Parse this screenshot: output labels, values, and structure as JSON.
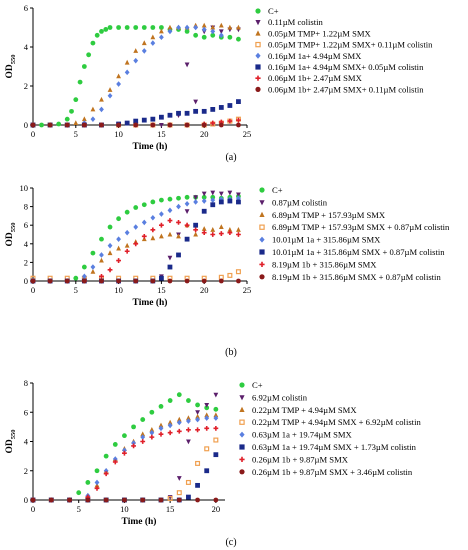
{
  "chart_data": [
    {
      "type": "scatter",
      "panel_label": "(a)",
      "xlabel": "Time (h)",
      "ylabel": "OD",
      "ylabel_sub": "550",
      "xlim": [
        0,
        25
      ],
      "ylim": [
        0,
        6
      ],
      "xticks": [
        "0",
        "5",
        "10",
        "15",
        "20",
        "25"
      ],
      "yticks": [
        "0",
        "2",
        "4",
        "6"
      ],
      "series": [
        {
          "name": "C+",
          "marker": "circle",
          "color": "#2ecc40",
          "x": [
            0,
            1,
            2,
            3,
            4,
            4.5,
            5,
            5.5,
            6,
            6.5,
            7,
            7.5,
            8,
            8.5,
            9,
            10,
            11,
            12,
            13,
            14,
            15,
            16,
            17,
            18,
            19,
            20,
            21,
            22,
            23,
            24
          ],
          "y": [
            0,
            0,
            0,
            0.05,
            0.3,
            0.7,
            1.3,
            2.2,
            3.0,
            3.6,
            4.2,
            4.6,
            4.8,
            4.9,
            5.0,
            5.0,
            5.0,
            5.0,
            5.0,
            5.0,
            5.0,
            4.9,
            4.9,
            4.8,
            4.6,
            4.5,
            4.6,
            4.5,
            4.5,
            4.4
          ]
        },
        {
          "name": "0.11µM colistin",
          "marker": "tri-down",
          "color": "#5b1f6b",
          "x": [
            0,
            2,
            4,
            6,
            8,
            10,
            12,
            14,
            15,
            16,
            17,
            18,
            19,
            20,
            21,
            22,
            23,
            24
          ],
          "y": [
            0,
            0,
            0,
            0,
            0,
            0,
            0,
            0,
            0,
            0,
            0.5,
            3.1,
            1.2,
            4.8,
            5.0,
            4.8,
            4.9,
            4.9
          ]
        },
        {
          "name": "0.05µM TMP+ 1.22µM SMX",
          "marker": "tri-up",
          "color": "#c0741f",
          "x": [
            0,
            2,
            4,
            5,
            6,
            7,
            8,
            9,
            10,
            11,
            12,
            13,
            14,
            15,
            16,
            17,
            18,
            19,
            20,
            21,
            22,
            23,
            24
          ],
          "y": [
            0,
            0,
            0,
            0.1,
            0.3,
            0.8,
            1.3,
            1.8,
            2.5,
            3.2,
            3.8,
            4.2,
            4.5,
            4.8,
            5.0,
            5.0,
            5.0,
            5.1,
            5.1,
            5.0,
            5.1,
            5.0,
            5.0
          ]
        },
        {
          "name": "0.05µM TMP+ 1.22µM SMX+ 0.11µM colistin",
          "marker": "square-open",
          "color": "#f0a050",
          "x": [
            0,
            2,
            4,
            6,
            8,
            10,
            12,
            14,
            16,
            18,
            20,
            21,
            22,
            23,
            24
          ],
          "y": [
            0,
            0,
            0,
            0,
            0,
            0,
            0,
            0,
            0,
            0,
            0,
            0.05,
            0.1,
            0.2,
            0.3
          ]
        },
        {
          "name": "0.16µM 1a+ 4.94µM SMX",
          "marker": "diamond",
          "color": "#5a7fe0",
          "x": [
            0,
            2,
            4,
            6,
            7,
            8,
            9,
            10,
            11,
            12,
            13,
            14,
            15,
            16,
            17,
            18,
            19,
            20,
            21,
            22
          ],
          "y": [
            0,
            0,
            0,
            0.1,
            0.3,
            0.8,
            1.5,
            2.1,
            2.7,
            3.3,
            3.8,
            4.2,
            4.5,
            4.8,
            5.0,
            5.0,
            5.0,
            4.9,
            4.8,
            4.6
          ]
        },
        {
          "name": "0.16µM 1a+ 4.94µM SMX+ 0.05µM colistin",
          "marker": "square",
          "color": "#1a2a8a",
          "x": [
            0,
            2,
            4,
            6,
            8,
            10,
            11,
            12,
            13,
            14,
            15,
            16,
            17,
            18,
            19,
            20,
            21,
            22,
            23,
            24
          ],
          "y": [
            0,
            0,
            0,
            0,
            0,
            0.05,
            0.1,
            0.2,
            0.25,
            0.3,
            0.4,
            0.5,
            0.6,
            0.6,
            0.7,
            0.7,
            0.8,
            0.9,
            1.0,
            1.2
          ]
        },
        {
          "name": "0.06µM 1b+ 2.47µM SMX",
          "marker": "plus",
          "color": "#e0202a",
          "x": [
            0,
            2,
            4,
            6,
            8,
            10,
            12,
            14,
            16,
            18,
            20,
            21,
            22,
            23,
            24
          ],
          "y": [
            0,
            0,
            0,
            0,
            0,
            0,
            0,
            0,
            0,
            0,
            0.05,
            0.1,
            0.15,
            0.2,
            0.25
          ]
        },
        {
          "name": "0.06µM 1b+ 2.47µM SMX+ 0.11µM colistin",
          "marker": "circle",
          "color": "#8a1a1a",
          "x": [
            0,
            2,
            4,
            6,
            8,
            10,
            12,
            14,
            16,
            18,
            20,
            22,
            24
          ],
          "y": [
            0,
            0,
            0,
            0,
            0,
            0,
            0,
            0,
            0,
            0,
            0,
            0,
            0
          ]
        }
      ]
    },
    {
      "type": "scatter",
      "panel_label": "(b)",
      "xlabel": "Time (h)",
      "ylabel": "OD",
      "ylabel_sub": "550",
      "xlim": [
        0,
        25
      ],
      "ylim": [
        0,
        10
      ],
      "xticks": [
        "0",
        "5",
        "10",
        "15",
        "20",
        "25"
      ],
      "yticks": [
        "0",
        "2",
        "4",
        "6",
        "8",
        "10"
      ],
      "series": [
        {
          "name": "C+",
          "marker": "circle",
          "color": "#2ecc40",
          "x": [
            0,
            2,
            4,
            5,
            6,
            7,
            8,
            9,
            10,
            11,
            12,
            13,
            14,
            15,
            16,
            17,
            18,
            19,
            20,
            21,
            22,
            23,
            24
          ],
          "y": [
            0,
            0,
            0,
            0.3,
            1.5,
            3.0,
            4.5,
            5.8,
            6.7,
            7.4,
            7.9,
            8.2,
            8.5,
            8.7,
            8.8,
            8.9,
            9.0,
            9.0,
            9.0,
            9.0,
            8.9,
            9.0,
            9.1
          ]
        },
        {
          "name": "0.87µM colistin",
          "marker": "tri-down",
          "color": "#5b1f6b",
          "x": [
            0,
            2,
            4,
            6,
            8,
            10,
            12,
            14,
            15,
            16,
            17,
            18,
            19,
            20,
            21,
            22,
            23,
            24
          ],
          "y": [
            0,
            0,
            0,
            0,
            0,
            0,
            0,
            0,
            0.5,
            2.5,
            5.0,
            7.5,
            9.0,
            9.4,
            9.5,
            9.4,
            9.5,
            9.3
          ]
        },
        {
          "name": "6.89µM TMP + 157.93µM SMX",
          "marker": "tri-up",
          "color": "#c0741f",
          "x": [
            0,
            2,
            4,
            6,
            7,
            8,
            9,
            10,
            11,
            12,
            13,
            14,
            15,
            16,
            17,
            18,
            19,
            20,
            21,
            22,
            23,
            24
          ],
          "y": [
            0,
            0,
            0,
            0.3,
            1.0,
            2.2,
            3.0,
            3.5,
            3.8,
            4.2,
            4.5,
            4.6,
            4.8,
            5.0,
            4.8,
            6.0,
            5.0,
            5.6,
            5.5,
            5.8,
            5.5,
            5.5
          ]
        },
        {
          "name": "6.89µM TMP + 157.93µM SMX + 0.87µM colistin",
          "marker": "square-open",
          "color": "#f0a050",
          "x": [
            0,
            2,
            4,
            6,
            8,
            10,
            12,
            14,
            16,
            18,
            20,
            22,
            23,
            24
          ],
          "y": [
            0.3,
            0.3,
            0.3,
            0.3,
            0.3,
            0.3,
            0.3,
            0.3,
            0.3,
            0.3,
            0.3,
            0.4,
            0.6,
            1.0
          ]
        },
        {
          "name": "10.01µM 1a + 315.86µM SMX",
          "marker": "diamond",
          "color": "#5a7fe0",
          "x": [
            0,
            2,
            4,
            6,
            7,
            8,
            9,
            10,
            11,
            12,
            13,
            14,
            15,
            16,
            17,
            18,
            19,
            20,
            21,
            22,
            23,
            24
          ],
          "y": [
            0,
            0,
            0,
            0.5,
            1.5,
            2.8,
            3.8,
            4.5,
            5.2,
            5.8,
            6.3,
            6.8,
            7.2,
            7.6,
            8.0,
            8.3,
            8.5,
            8.6,
            8.7,
            8.8,
            8.8,
            8.9
          ]
        },
        {
          "name": "10.01µM 1a + 315.86µM SMX + 0.87µM colistin",
          "marker": "square",
          "color": "#1a2a8a",
          "x": [
            0,
            2,
            4,
            6,
            8,
            10,
            12,
            14,
            15,
            16,
            17,
            18,
            19,
            20,
            21,
            22,
            23,
            24
          ],
          "y": [
            0,
            0,
            0,
            0,
            0,
            0,
            0,
            0,
            0.3,
            1.5,
            2.8,
            4.5,
            6.0,
            7.5,
            8.2,
            8.5,
            8.6,
            8.5
          ]
        },
        {
          "name": "8.19µM 1b + 315.86µM SMX",
          "marker": "plus",
          "color": "#e0202a",
          "x": [
            0,
            2,
            4,
            6,
            8,
            9,
            10,
            11,
            12,
            13,
            14,
            15,
            16,
            17,
            18,
            19,
            20,
            21,
            22,
            23,
            24
          ],
          "y": [
            0,
            0,
            0,
            0,
            0.5,
            1.2,
            2.2,
            3.2,
            4.0,
            4.8,
            5.5,
            6.0,
            6.5,
            6.3,
            6.0,
            5.5,
            5.2,
            5.0,
            5.1,
            5.2,
            5.0
          ]
        },
        {
          "name": "8.19µM 1b + 315.86µM SMX + 0.87µM colistin",
          "marker": "circle",
          "color": "#8a1a1a",
          "x": [
            0,
            2,
            4,
            6,
            8,
            10,
            12,
            14,
            16,
            18,
            20,
            22,
            24
          ],
          "y": [
            0,
            0,
            0,
            0,
            0,
            0,
            0,
            0,
            0,
            0,
            0,
            0,
            0
          ]
        }
      ]
    },
    {
      "type": "scatter",
      "panel_label": "(c)",
      "xlabel": "Time (h)",
      "ylabel": "OD",
      "ylabel_sub": "550",
      "xlim": [
        0,
        21
      ],
      "ylim": [
        0,
        8
      ],
      "xticks": [
        "0",
        "5",
        "10",
        "15",
        "20"
      ],
      "yticks": [
        "0",
        "2",
        "4",
        "6",
        "8"
      ],
      "series": [
        {
          "name": "C+",
          "marker": "circle",
          "color": "#2ecc40",
          "x": [
            0,
            2,
            4,
            5,
            6,
            7,
            8,
            9,
            10,
            11,
            12,
            13,
            14,
            15,
            16,
            17,
            18,
            19,
            20
          ],
          "y": [
            0,
            0,
            0,
            0.5,
            1.2,
            2.0,
            3.0,
            3.8,
            4.4,
            5.0,
            5.5,
            6.0,
            6.4,
            6.8,
            7.2,
            6.8,
            6.5,
            6.3,
            6.2
          ]
        },
        {
          "name": "6.92µM colistin",
          "marker": "tri-down",
          "color": "#5b1f6b",
          "x": [
            0,
            2,
            4,
            6,
            8,
            10,
            12,
            14,
            15,
            16,
            17,
            18,
            19,
            20
          ],
          "y": [
            0,
            0,
            0,
            0,
            0,
            0,
            0,
            0,
            0.2,
            1.5,
            4.0,
            6.0,
            6.5,
            7.2
          ]
        },
        {
          "name": "0.22µM TMP + 4.94µM SMX",
          "marker": "tri-up",
          "color": "#c0741f",
          "x": [
            0,
            2,
            4,
            6,
            7,
            8,
            9,
            10,
            11,
            12,
            13,
            14,
            15,
            16,
            17,
            18,
            19,
            20
          ],
          "y": [
            0,
            0,
            0,
            0.3,
            1.0,
            2.0,
            2.8,
            3.5,
            4.0,
            4.5,
            4.8,
            5.1,
            5.3,
            5.5,
            5.6,
            5.7,
            5.8,
            5.8
          ]
        },
        {
          "name": "0.22µM TMP + 4.94µM SMX + 6.92µM colistin",
          "marker": "square-open",
          "color": "#f0a050",
          "x": [
            0,
            2,
            4,
            6,
            8,
            10,
            12,
            14,
            15,
            16,
            17,
            18,
            19,
            20
          ],
          "y": [
            0,
            0,
            0,
            0,
            0,
            0,
            0,
            0,
            0.1,
            0.5,
            1.2,
            2.5,
            3.5,
            4.1
          ]
        },
        {
          "name": "0.63µM 1a + 19.74µM SMX",
          "marker": "diamond",
          "color": "#5a7fe0",
          "x": [
            0,
            2,
            4,
            6,
            7,
            8,
            9,
            10,
            11,
            12,
            13,
            14,
            15,
            16,
            17,
            18,
            19,
            20
          ],
          "y": [
            0,
            0,
            0,
            0.3,
            1.2,
            2.0,
            2.8,
            3.4,
            3.9,
            4.3,
            4.6,
            4.9,
            5.1,
            5.3,
            5.4,
            5.5,
            5.6,
            5.6
          ]
        },
        {
          "name": "0.63µM 1a + 19.74µM SMX + 1.73µM colistin",
          "marker": "square",
          "color": "#1a2a8a",
          "x": [
            0,
            2,
            4,
            6,
            8,
            10,
            12,
            14,
            16,
            17,
            18,
            19,
            20
          ],
          "y": [
            0,
            0,
            0,
            0,
            0,
            0,
            0,
            0,
            0,
            0.2,
            1.0,
            2.0,
            3.1
          ]
        },
        {
          "name": "0.26µM 1b + 9.87µM SMX",
          "marker": "plus",
          "color": "#e0202a",
          "x": [
            0,
            2,
            4,
            6,
            7,
            8,
            9,
            10,
            11,
            12,
            13,
            14,
            15,
            16,
            17,
            18,
            19,
            20
          ],
          "y": [
            0,
            0,
            0,
            0.2,
            0.8,
            1.8,
            2.6,
            3.2,
            3.7,
            4.0,
            4.3,
            4.5,
            4.6,
            4.7,
            4.8,
            4.8,
            4.9,
            4.9
          ]
        },
        {
          "name": "0.26µM 1b + 9.87µM SMX + 3.46µM colistin",
          "marker": "circle",
          "color": "#8a1a1a",
          "x": [
            0,
            2,
            4,
            6,
            8,
            10,
            12,
            14,
            16,
            18,
            20
          ],
          "y": [
            0,
            0,
            0,
            0,
            0,
            0,
            0,
            0,
            0,
            0,
            0
          ]
        }
      ]
    }
  ]
}
